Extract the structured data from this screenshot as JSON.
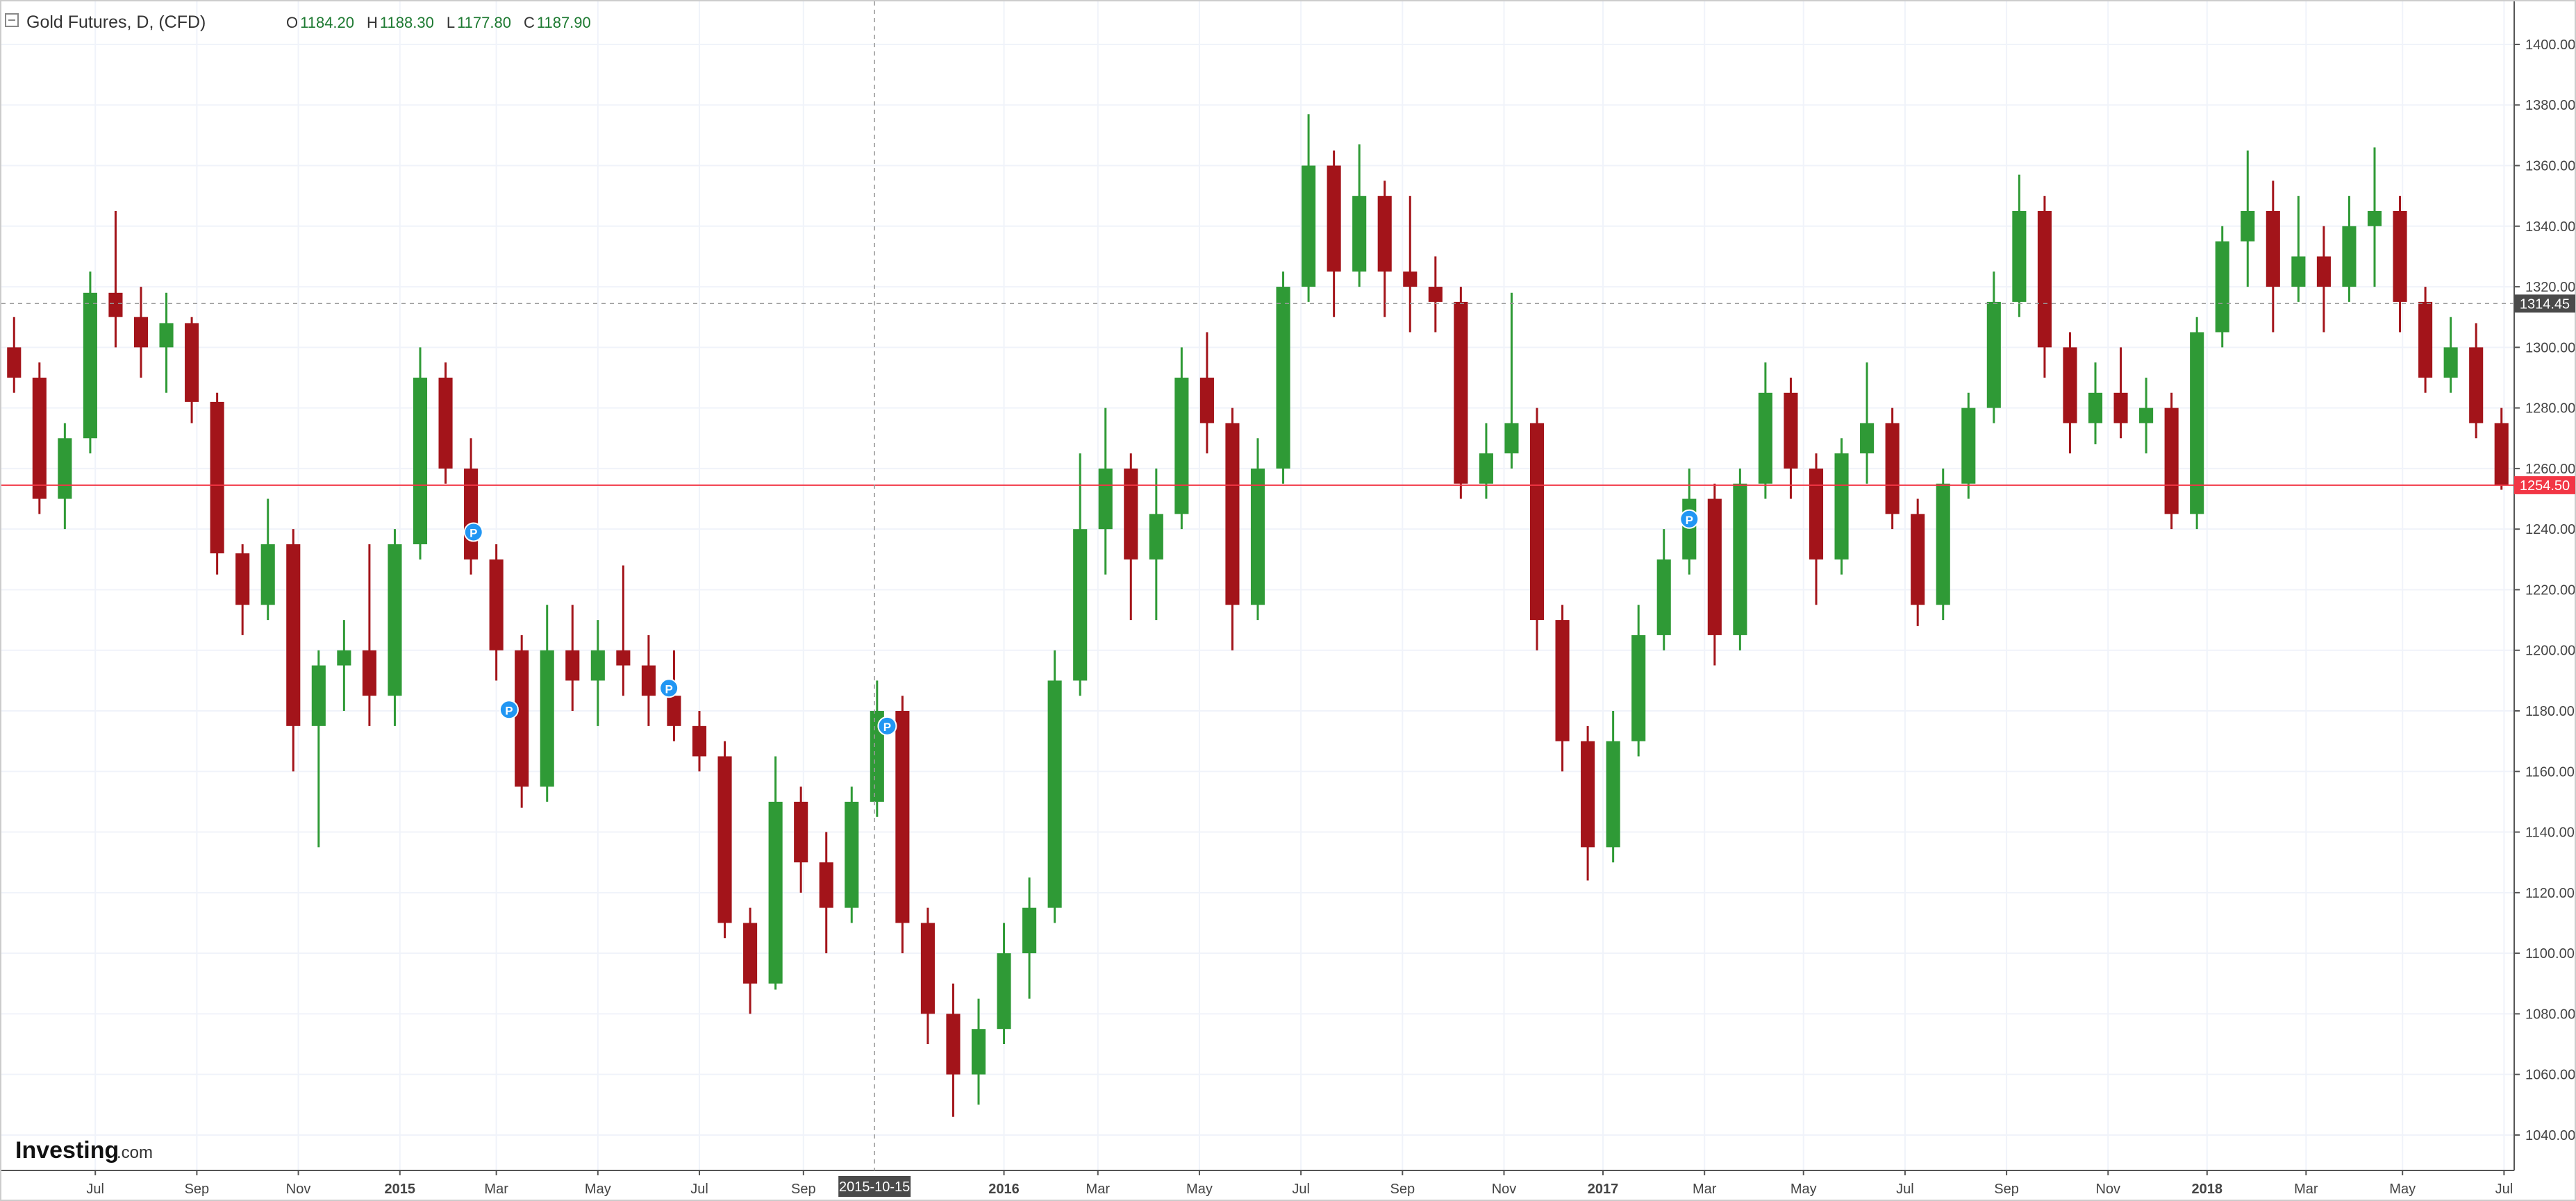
{
  "header": {
    "title": "Gold Futures, D, (CFD)",
    "ohlc": [
      {
        "label": "O",
        "value": "1184.20"
      },
      {
        "label": "H",
        "value": "1188.30"
      },
      {
        "label": "L",
        "value": "1177.80"
      },
      {
        "label": "C",
        "value": "1187.90"
      }
    ]
  },
  "logo": {
    "name": "Investing",
    "suffix": ".com"
  },
  "chart_data": {
    "type": "candlestick",
    "up_color": "#2f9a36",
    "down_color": "#a3141a",
    "grid": true,
    "xlim": [
      -0.5,
      98.5
    ],
    "ylim": [
      1028.3,
      1414.2
    ],
    "xticks": [
      {
        "value": 3.2,
        "label": "Jul"
      },
      {
        "value": 7.2,
        "label": "Sep"
      },
      {
        "value": 11.2,
        "label": "Nov"
      },
      {
        "value": 15.2,
        "label": "2015"
      },
      {
        "value": 19.0,
        "label": "Mar"
      },
      {
        "value": 23.0,
        "label": "May"
      },
      {
        "value": 27.0,
        "label": "Jul"
      },
      {
        "value": 31.1,
        "label": "Sep"
      },
      {
        "value": 39.0,
        "label": "2016"
      },
      {
        "value": 42.7,
        "label": "Mar"
      },
      {
        "value": 46.7,
        "label": "May"
      },
      {
        "value": 50.7,
        "label": "Jul"
      },
      {
        "value": 54.7,
        "label": "Sep"
      },
      {
        "value": 58.7,
        "label": "Nov"
      },
      {
        "value": 62.6,
        "label": "2017"
      },
      {
        "value": 66.6,
        "label": "Mar"
      },
      {
        "value": 70.5,
        "label": "May"
      },
      {
        "value": 74.5,
        "label": "Jul"
      },
      {
        "value": 78.5,
        "label": "Sep"
      },
      {
        "value": 82.5,
        "label": "Nov"
      },
      {
        "value": 86.4,
        "label": "2018"
      },
      {
        "value": 90.3,
        "label": "Mar"
      },
      {
        "value": 94.1,
        "label": "May"
      },
      {
        "value": 98.1,
        "label": "Jul"
      }
    ],
    "yticks": [
      {
        "value": 1040,
        "label": "1040.00"
      },
      {
        "value": 1060,
        "label": "1060.00"
      },
      {
        "value": 1080,
        "label": "1080.00"
      },
      {
        "value": 1100,
        "label": "1100.00"
      },
      {
        "value": 1120,
        "label": "1120.00"
      },
      {
        "value": 1140,
        "label": "1140.00"
      },
      {
        "value": 1160,
        "label": "1160.00"
      },
      {
        "value": 1180,
        "label": "1180.00"
      },
      {
        "value": 1200,
        "label": "1200.00"
      },
      {
        "value": 1220,
        "label": "1220.00"
      },
      {
        "value": 1240,
        "label": "1240.00"
      },
      {
        "value": 1260,
        "label": "1260.00"
      },
      {
        "value": 1280,
        "label": "1280.00"
      },
      {
        "value": 1300,
        "label": "1300.00"
      },
      {
        "value": 1320,
        "label": "1320.00"
      },
      {
        "value": 1340,
        "label": "1340.00"
      },
      {
        "value": 1360,
        "label": "1360.00"
      },
      {
        "value": 1380,
        "label": "1380.00"
      },
      {
        "value": 1400,
        "label": "1400.00"
      }
    ],
    "x": [
      0,
      1,
      2,
      3,
      4,
      5,
      6,
      7,
      8,
      9,
      10,
      11,
      12,
      13,
      14,
      15,
      16,
      17,
      18,
      19,
      20,
      21,
      22,
      23,
      24,
      25,
      26,
      27,
      28,
      29,
      30,
      31,
      32,
      33,
      34,
      35,
      36,
      37,
      38,
      39,
      40,
      41,
      42,
      43,
      44,
      45,
      46,
      47,
      48,
      49,
      50,
      51,
      52,
      53,
      54,
      55,
      56,
      57,
      58,
      59,
      60,
      61,
      62,
      63,
      64,
      65,
      66,
      67,
      68,
      69,
      70,
      71,
      72,
      73,
      74,
      75,
      76,
      77,
      78,
      79,
      80,
      81,
      82,
      83,
      84,
      85,
      86,
      87,
      88,
      89,
      90,
      91,
      92,
      93,
      94,
      95,
      96,
      97,
      98
    ],
    "open": [
      1300,
      1290,
      1250,
      1270,
      1318,
      1310,
      1300,
      1308,
      1282,
      1232,
      1215,
      1235,
      1175,
      1195,
      1200,
      1185,
      1235,
      1290,
      1260,
      1230,
      1200,
      1155,
      1200,
      1190,
      1200,
      1195,
      1185,
      1175,
      1165,
      1110,
      1090,
      1150,
      1130,
      1115,
      1150,
      1180,
      1110,
      1080,
      1060,
      1075,
      1100,
      1115,
      1190,
      1240,
      1260,
      1230,
      1245,
      1290,
      1275,
      1215,
      1260,
      1320,
      1360,
      1325,
      1350,
      1325,
      1320,
      1315,
      1255,
      1265,
      1275,
      1210,
      1170,
      1135,
      1170,
      1205,
      1230,
      1250,
      1205,
      1255,
      1285,
      1260,
      1230,
      1265,
      1275,
      1245,
      1215,
      1255,
      1280,
      1315,
      1345,
      1300,
      1275,
      1285,
      1275,
      1280,
      1245,
      1305,
      1335,
      1345,
      1320,
      1330,
      1320,
      1340,
      1345,
      1315,
      1290,
      1300,
      1275
    ],
    "high": [
      1310,
      1295,
      1275,
      1325,
      1345,
      1320,
      1318,
      1310,
      1285,
      1235,
      1250,
      1240,
      1200,
      1210,
      1235,
      1240,
      1300,
      1295,
      1270,
      1235,
      1205,
      1215,
      1215,
      1210,
      1228,
      1205,
      1200,
      1180,
      1170,
      1115,
      1165,
      1155,
      1140,
      1155,
      1190,
      1185,
      1115,
      1090,
      1085,
      1110,
      1125,
      1200,
      1265,
      1280,
      1265,
      1260,
      1300,
      1305,
      1280,
      1270,
      1325,
      1377,
      1365,
      1367,
      1355,
      1350,
      1330,
      1320,
      1275,
      1318,
      1280,
      1215,
      1175,
      1180,
      1215,
      1240,
      1260,
      1255,
      1260,
      1295,
      1290,
      1265,
      1270,
      1295,
      1280,
      1250,
      1260,
      1285,
      1325,
      1357,
      1350,
      1305,
      1295,
      1300,
      1290,
      1285,
      1310,
      1340,
      1365,
      1355,
      1350,
      1340,
      1350,
      1366,
      1350,
      1320,
      1310,
      1308,
      1280
    ],
    "low": [
      1285,
      1245,
      1240,
      1265,
      1300,
      1290,
      1285,
      1275,
      1225,
      1205,
      1210,
      1160,
      1135,
      1180,
      1175,
      1175,
      1230,
      1255,
      1225,
      1190,
      1148,
      1150,
      1180,
      1175,
      1185,
      1175,
      1170,
      1160,
      1105,
      1080,
      1088,
      1120,
      1100,
      1110,
      1145,
      1100,
      1070,
      1046,
      1050,
      1070,
      1085,
      1110,
      1185,
      1225,
      1210,
      1210,
      1240,
      1265,
      1200,
      1210,
      1255,
      1315,
      1310,
      1320,
      1310,
      1305,
      1305,
      1250,
      1250,
      1260,
      1200,
      1160,
      1124,
      1130,
      1165,
      1200,
      1225,
      1195,
      1200,
      1250,
      1250,
      1215,
      1225,
      1255,
      1240,
      1208,
      1210,
      1250,
      1275,
      1310,
      1290,
      1265,
      1268,
      1270,
      1265,
      1240,
      1240,
      1300,
      1320,
      1305,
      1315,
      1305,
      1315,
      1320,
      1305,
      1285,
      1285,
      1270,
      1253
    ],
    "close": [
      1290,
      1250,
      1270,
      1318,
      1310,
      1300,
      1308,
      1282,
      1232,
      1215,
      1235,
      1175,
      1195,
      1200,
      1185,
      1235,
      1290,
      1260,
      1230,
      1200,
      1155,
      1200,
      1190,
      1200,
      1195,
      1185,
      1175,
      1165,
      1110,
      1090,
      1150,
      1130,
      1115,
      1150,
      1180,
      1110,
      1080,
      1060,
      1075,
      1100,
      1115,
      1190,
      1240,
      1260,
      1230,
      1245,
      1290,
      1275,
      1215,
      1260,
      1320,
      1360,
      1325,
      1350,
      1325,
      1320,
      1315,
      1255,
      1265,
      1275,
      1210,
      1170,
      1135,
      1170,
      1205,
      1230,
      1250,
      1205,
      1255,
      1285,
      1260,
      1230,
      1265,
      1275,
      1245,
      1215,
      1255,
      1280,
      1315,
      1345,
      1300,
      1275,
      1285,
      1275,
      1280,
      1245,
      1305,
      1335,
      1345,
      1320,
      1330,
      1320,
      1340,
      1345,
      1315,
      1290,
      1300,
      1275,
      1254.5
    ],
    "crosshair": {
      "x": 33.9,
      "x_label": "2015-10-15",
      "y": 1314.45
    },
    "last_price": {
      "value": 1254.5,
      "label": "1254.50"
    },
    "last_price_color": "#f23645",
    "marker_color": "#2196f3",
    "event_markers": [
      {
        "label": "P",
        "x": 18.1,
        "y": 1239
      },
      {
        "label": "P",
        "x": 19.5,
        "y": 1180.4
      },
      {
        "label": "P",
        "x": 25.8,
        "y": 1187.5
      },
      {
        "label": "P",
        "x": 34.4,
        "y": 1175
      },
      {
        "label": "P",
        "x": 66.0,
        "y": 1243.3
      }
    ]
  }
}
